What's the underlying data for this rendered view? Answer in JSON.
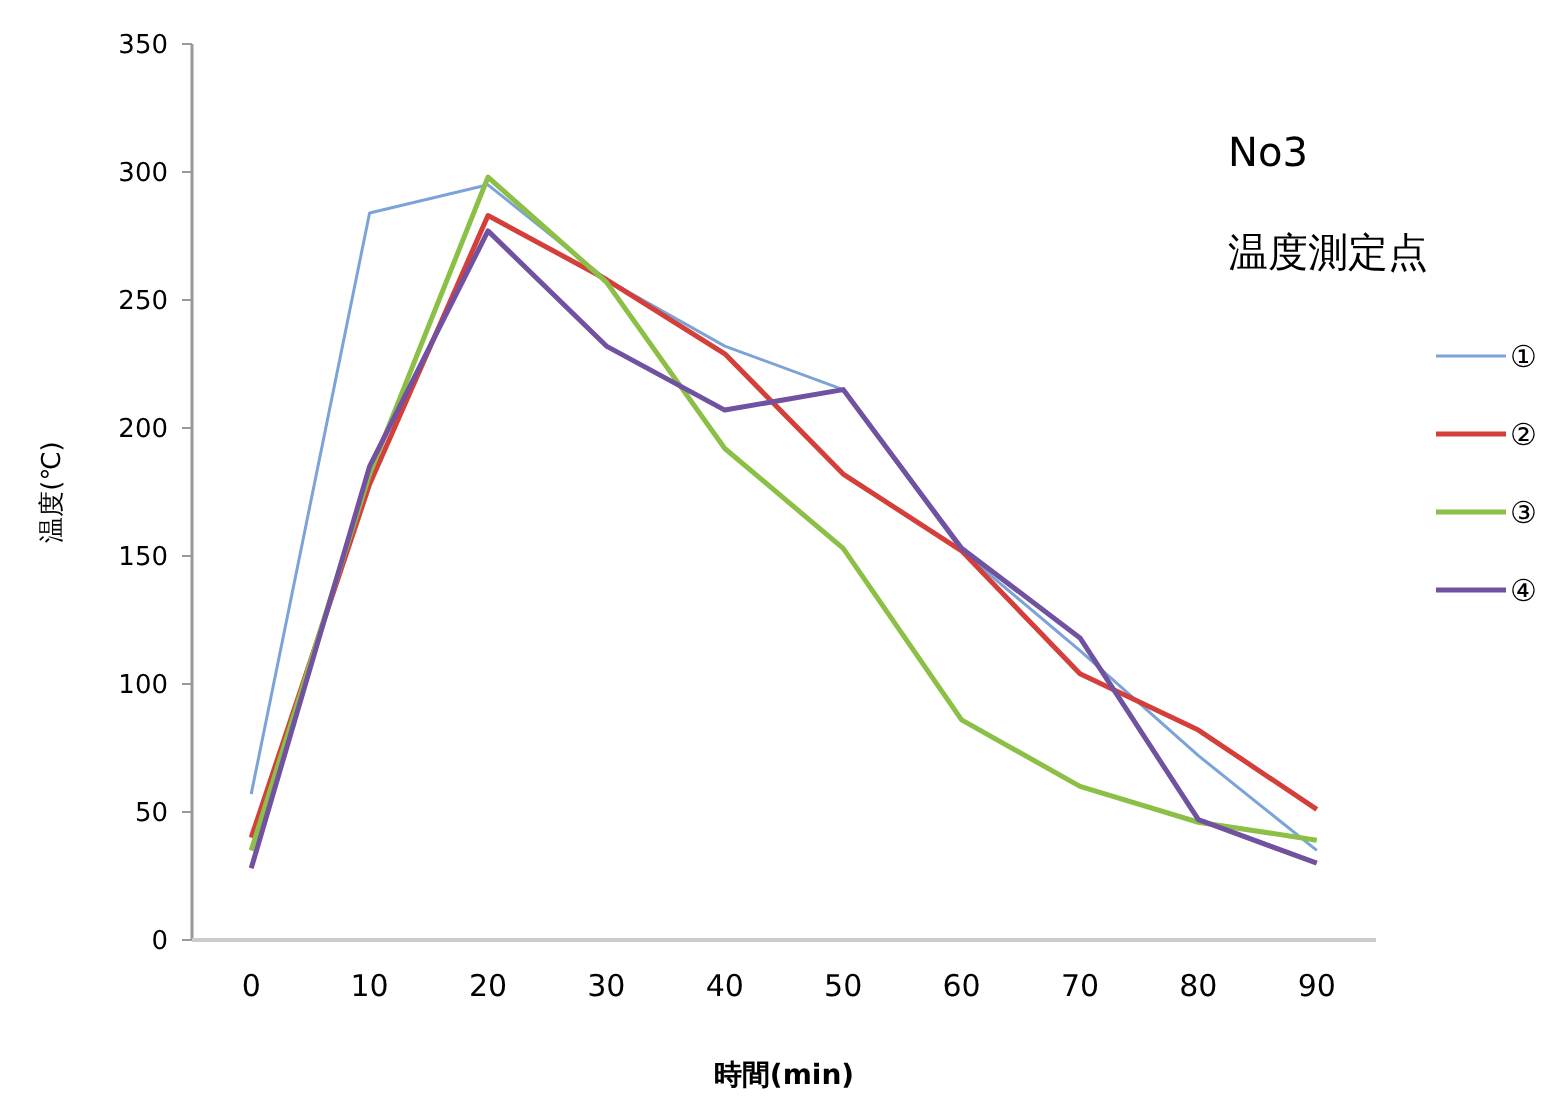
{
  "chart_data": {
    "type": "line",
    "title": "No3",
    "legend_title": "温度測定点",
    "xlabel": "時間(min)",
    "ylabel": "温度(℃)",
    "x": [
      0,
      10,
      20,
      30,
      40,
      50,
      60,
      70,
      80,
      90
    ],
    "series": [
      {
        "name": "①",
        "color": "#7ba3d8",
        "values": [
          57,
          284,
          295,
          258,
          232,
          215,
          152,
          113,
          72,
          35
        ]
      },
      {
        "name": "②",
        "color": "#d43f3a",
        "values": [
          40,
          178,
          283,
          258,
          229,
          182,
          152,
          104,
          82,
          51
        ]
      },
      {
        "name": "③",
        "color": "#8cbf45",
        "values": [
          35,
          182,
          298,
          257,
          192,
          153,
          86,
          60,
          46,
          39
        ]
      },
      {
        "name": "④",
        "color": "#7052a0",
        "values": [
          28,
          185,
          277,
          232,
          207,
          215,
          153,
          118,
          47,
          30
        ]
      }
    ],
    "xlim": [
      -5,
      95
    ],
    "xticks": [
      0,
      10,
      20,
      30,
      40,
      50,
      60,
      70,
      80,
      90
    ],
    "ylim": [
      0,
      350
    ],
    "yticks": [
      0,
      50,
      100,
      150,
      200,
      250,
      300,
      350
    ],
    "grid": false,
    "legend": "right",
    "marker": "none",
    "line_style": "solid"
  }
}
